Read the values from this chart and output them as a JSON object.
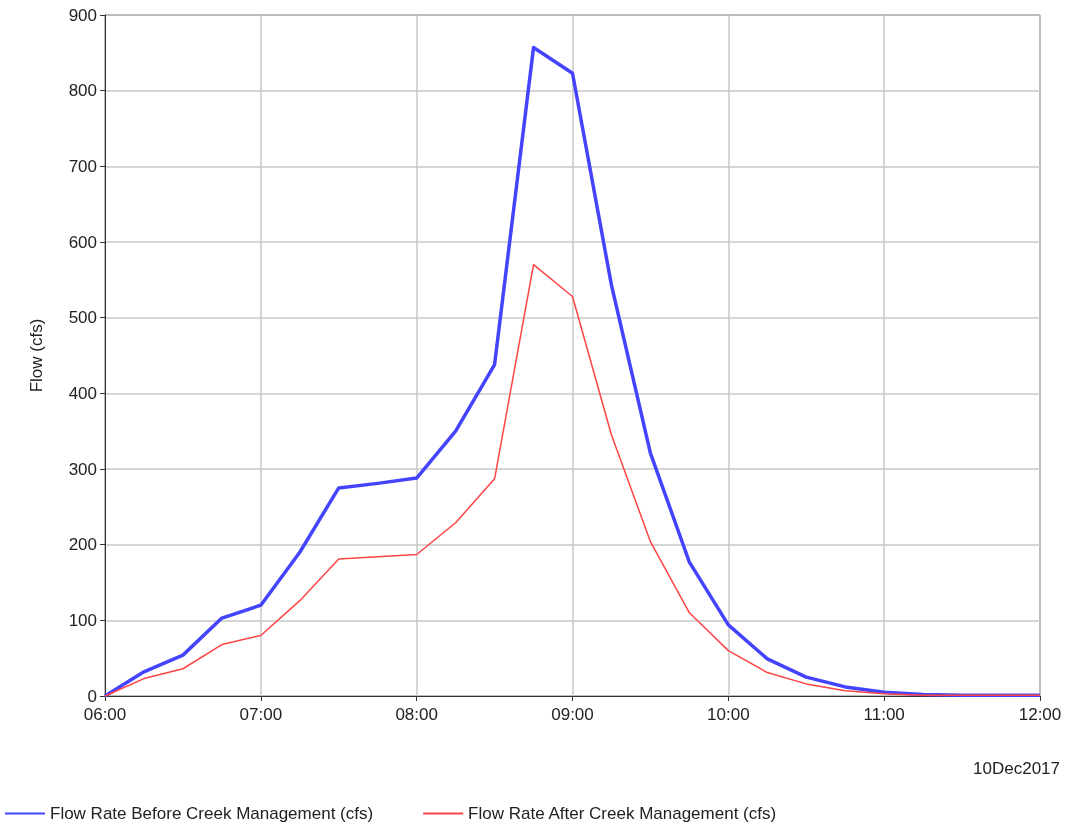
{
  "chart_data": {
    "type": "line",
    "ylabel": "Flow (cfs)",
    "x": [
      6,
      6.25,
      6.5,
      6.75,
      7,
      7.25,
      7.5,
      7.75,
      8,
      8.25,
      8.5,
      8.75,
      9,
      9.25,
      9.5,
      9.75,
      10,
      10.25,
      10.5,
      10.75,
      11,
      11.25,
      11.5,
      11.75,
      12
    ],
    "series": [
      {
        "name": "Flow Rate Before Creek Management (cfs)",
        "color": "#4444ff",
        "values": [
          0,
          32,
          54,
          103,
          120,
          190,
          275,
          281,
          288,
          350,
          438,
          857,
          823,
          543,
          321,
          177,
          94,
          49,
          25,
          12,
          5,
          2,
          1,
          1,
          1
        ]
      },
      {
        "name": "Flow Rate After Creek Management (cfs)",
        "color": "#ff4444",
        "values": [
          0,
          23,
          36,
          68,
          80,
          126,
          181,
          184,
          187,
          229,
          287,
          570,
          528,
          345,
          204,
          110,
          60,
          31,
          16,
          7,
          3,
          1,
          1,
          1,
          1
        ]
      }
    ],
    "xlim": [
      6,
      12
    ],
    "xticks": [
      {
        "value": 6,
        "label": "06:00"
      },
      {
        "value": 7,
        "label": "07:00"
      },
      {
        "value": 8,
        "label": "08:00"
      },
      {
        "value": 9,
        "label": "09:00"
      },
      {
        "value": 10,
        "label": "10:00"
      },
      {
        "value": 11,
        "label": "11:00"
      },
      {
        "value": 12,
        "label": "12:00"
      }
    ],
    "ylim": [
      0,
      900
    ],
    "yticks": [
      0,
      100,
      200,
      300,
      400,
      500,
      600,
      700,
      800,
      900
    ],
    "annotations": [
      "10Dec2017"
    ],
    "grid": true,
    "legend": "bottom"
  }
}
